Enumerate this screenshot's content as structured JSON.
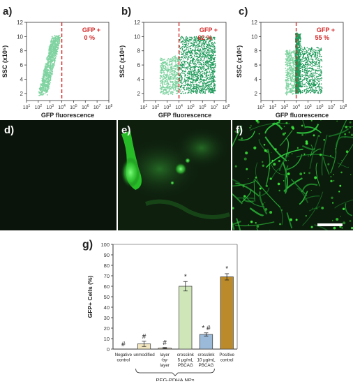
{
  "panel_labels": {
    "a": "a)",
    "b": "b)",
    "c": "c)",
    "d": "d)",
    "e": "e)",
    "f": "f)",
    "g": "g)"
  },
  "flow_plots": [
    {
      "gate_label": "GFP +",
      "gate_value": "0 %"
    },
    {
      "gate_label": "GFP +",
      "gate_value": "62 %"
    },
    {
      "gate_label": "GFP +",
      "gate_value": "55 %"
    }
  ],
  "flow_axes": {
    "ylabel": "SSC (x10⁵)",
    "xlabel": "GFP fluorescence",
    "yticks": [
      "2",
      "4",
      "6",
      "8",
      "10",
      "12"
    ],
    "xtick_base": "10",
    "xtick_exps": [
      "1",
      "2",
      "3",
      "4",
      "5",
      "6",
      "7",
      "8"
    ]
  },
  "colors": {
    "light_green": "#7fd3a0",
    "dark_green": "#1f9a5a",
    "gate": "#d42a2a",
    "gate_text": "#d42a2a",
    "micro_bg": "#0c1a0c",
    "bright_green": "#3cf03c"
  },
  "scale_bar": true,
  "chart_data": {
    "type": "bar",
    "ylabel": "GFP+ Cells (%)",
    "ylim": [
      0,
      100
    ],
    "yticks": [
      "0",
      "10",
      "20",
      "30",
      "40",
      "50",
      "60",
      "70",
      "80",
      "90",
      "100"
    ],
    "group_label": "PEG-PDHA NPs",
    "categories": [
      {
        "lines": [
          "Negative",
          "control"
        ]
      },
      {
        "lines": [
          "unmodified"
        ]
      },
      {
        "lines": [
          "layer",
          "-by-",
          "layer"
        ]
      },
      {
        "lines": [
          "crosslink",
          "5 μg/mL",
          "PBCAG"
        ]
      },
      {
        "lines": [
          "crosslink",
          "10 μg/mL",
          "PBCAG"
        ]
      },
      {
        "lines": [
          "Positive",
          "control"
        ]
      }
    ],
    "values": [
      0,
      5,
      1,
      60,
      14,
      69
    ],
    "errors": [
      0,
      2.5,
      0.5,
      4.5,
      1.5,
      3
    ],
    "bar_colors": [
      "#ffffff",
      "#f1e6c0",
      "#f1e6c0",
      "#cfe7b8",
      "#9bbad9",
      "#bb8a2a"
    ],
    "annotations": [
      "#",
      "#",
      "#",
      "*",
      "* #",
      "*"
    ]
  }
}
